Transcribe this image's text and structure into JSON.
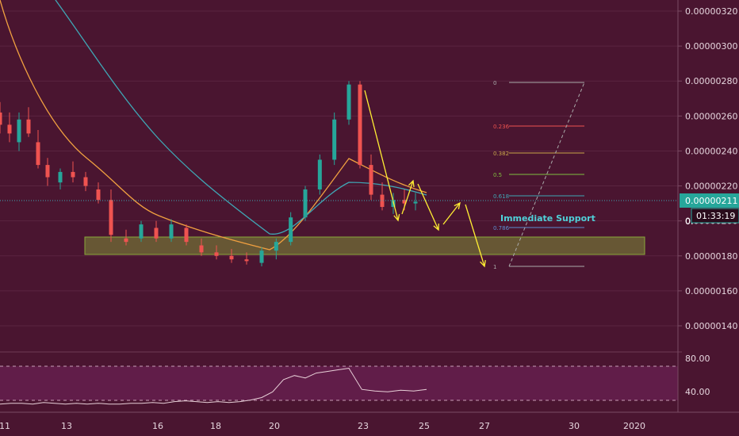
{
  "theme": {
    "background": "#4a1530",
    "up_candle": "#26a69a",
    "down_candle": "#ef5350",
    "ema_fast": "#f0a040",
    "ema_slow": "#3fa7b5",
    "support_zone": "#8ba83a",
    "arrow": "#ffee33",
    "rsi_line": "#e8d0d8",
    "rsi_band": "#6a2052"
  },
  "chart_data": [
    {
      "type": "candlestick",
      "price_axis": {
        "ticks": [
          "0.00000320",
          "0.00000300",
          "0.00000280",
          "0.00000260",
          "0.00000240",
          "0.00000220",
          "0.00000200",
          "0.00000180",
          "0.00000160",
          "0.00000140"
        ],
        "ylim": [
          1.3e-06,
          3.3e-06
        ]
      },
      "time_axis": {
        "ticks": [
          "11",
          "13",
          "16",
          "18",
          "20",
          "23",
          "25",
          "27",
          "30",
          "2020"
        ]
      },
      "current_price_label": "0.00000211",
      "countdown_label": "01:33:19",
      "partial_label": "0.",
      "annotation": "Immediate Support",
      "fibonacci": {
        "levels": [
          "0",
          "0.236",
          "0.382",
          "0.5",
          "0.618",
          "0.786",
          "1"
        ],
        "colors": [
          "#aaaaaa",
          "#ef5350",
          "#c9a64a",
          "#7fbf3f",
          "#3fa7b5",
          "#5a8fd0",
          "#aaaaaa"
        ]
      },
      "support_zone": {
        "low": 1.79e-06,
        "high": 1.89e-06
      },
      "candles_ohlc_approx": [
        [
          2.62e-06,
          2.68e-06,
          2.5e-06,
          2.55e-06
        ],
        [
          2.55e-06,
          2.62e-06,
          2.45e-06,
          2.5e-06
        ],
        [
          2.45e-06,
          2.62e-06,
          2.4e-06,
          2.58e-06
        ],
        [
          2.58e-06,
          2.65e-06,
          2.48e-06,
          2.5e-06
        ],
        [
          2.45e-06,
          2.52e-06,
          2.3e-06,
          2.32e-06
        ],
        [
          2.32e-06,
          2.36e-06,
          2.2e-06,
          2.25e-06
        ],
        [
          2.22e-06,
          2.3e-06,
          2.18e-06,
          2.28e-06
        ],
        [
          2.28e-06,
          2.34e-06,
          2.22e-06,
          2.25e-06
        ],
        [
          2.25e-06,
          2.28e-06,
          2.17e-06,
          2.2e-06
        ],
        [
          2.18e-06,
          2.22e-06,
          2.1e-06,
          2.12e-06
        ],
        [
          2.12e-06,
          2.18e-06,
          1.88e-06,
          1.92e-06
        ],
        [
          1.9e-06,
          1.95e-06,
          1.86e-06,
          1.88e-06
        ],
        [
          1.9e-06,
          2e-06,
          1.88e-06,
          1.98e-06
        ],
        [
          1.96e-06,
          2e-06,
          1.88e-06,
          1.9e-06
        ],
        [
          1.9e-06,
          2.01e-06,
          1.88e-06,
          1.98e-06
        ],
        [
          1.96e-06,
          1.98e-06,
          1.86e-06,
          1.88e-06
        ],
        [
          1.86e-06,
          1.9e-06,
          1.8e-06,
          1.82e-06
        ],
        [
          1.82e-06,
          1.86e-06,
          1.78e-06,
          1.8e-06
        ],
        [
          1.8e-06,
          1.84e-06,
          1.76e-06,
          1.78e-06
        ],
        [
          1.78e-06,
          1.82e-06,
          1.75e-06,
          1.77e-06
        ],
        [
          1.76e-06,
          1.85e-06,
          1.74e-06,
          1.83e-06
        ],
        [
          1.83e-06,
          1.9e-06,
          1.78e-06,
          1.88e-06
        ],
        [
          1.88e-06,
          2.05e-06,
          1.86e-06,
          2.02e-06
        ],
        [
          2.02e-06,
          2.2e-06,
          2e-06,
          2.18e-06
        ],
        [
          2.18e-06,
          2.38e-06,
          2.15e-06,
          2.35e-06
        ],
        [
          2.35e-06,
          2.62e-06,
          2.32e-06,
          2.58e-06
        ],
        [
          2.58e-06,
          2.8e-06,
          2.55e-06,
          2.78e-06
        ],
        [
          2.78e-06,
          2.8e-06,
          2.3e-06,
          2.32e-06
        ],
        [
          2.32e-06,
          2.38e-06,
          2.12e-06,
          2.15e-06
        ],
        [
          2.15e-06,
          2.22e-06,
          2.06e-06,
          2.08e-06
        ],
        [
          2.08e-06,
          2.16e-06,
          2.04e-06,
          2.12e-06
        ],
        [
          2.12e-06,
          2.18e-06,
          2.06e-06,
          2.1e-06
        ],
        [
          2.1e-06,
          2.16e-06,
          2.06e-06,
          2.11e-06
        ]
      ],
      "rsi": {
        "ticks": [
          "80.00",
          "40.00"
        ],
        "ylim": [
          20,
          90
        ],
        "band": [
          30,
          70
        ],
        "values": [
          30,
          31,
          31,
          30,
          32,
          31,
          30,
          31,
          30,
          31,
          30,
          30,
          31,
          31,
          32,
          31,
          33,
          34,
          33,
          32,
          33,
          32,
          33,
          35,
          38,
          45,
          60,
          65,
          62,
          68,
          70,
          72,
          74,
          48,
          46,
          45,
          47,
          46,
          48
        ]
      }
    }
  ]
}
